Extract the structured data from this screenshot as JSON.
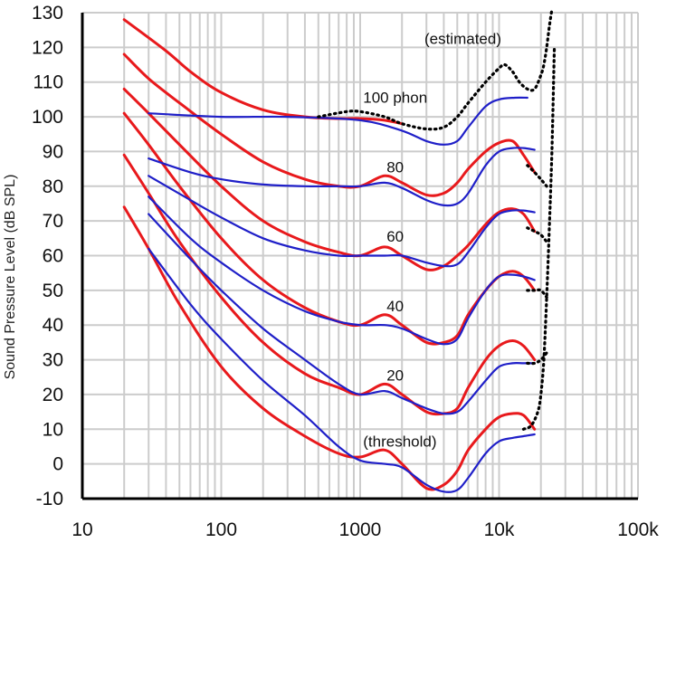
{
  "chart_data": {
    "type": "line",
    "title": "",
    "xlabel": "",
    "ylabel": "Sound Pressure Level (dB SPL)",
    "x_scale": "log",
    "xlim": [
      10,
      100000
    ],
    "ylim": [
      -10,
      130
    ],
    "x_ticks": [
      {
        "value": 10,
        "label": "10"
      },
      {
        "value": 100,
        "label": "100"
      },
      {
        "value": 1000,
        "label": "1000"
      },
      {
        "value": 10000,
        "label": "10k"
      },
      {
        "value": 100000,
        "label": "100k"
      }
    ],
    "y_ticks": [
      -10,
      0,
      10,
      20,
      30,
      40,
      50,
      60,
      70,
      80,
      90,
      100,
      110,
      120,
      130
    ],
    "grid": true,
    "colors": {
      "red": "#e8191c",
      "blue": "#1f1fc8",
      "estimated": "#000000",
      "grid": "#cccccc",
      "axis": "#000000"
    },
    "annotations": [
      {
        "text": "(estimated)",
        "x": 2900,
        "y": 121
      },
      {
        "text": "100 phon",
        "x": 1050,
        "y": 104
      },
      {
        "text": "80",
        "x": 1550,
        "y": 84
      },
      {
        "text": "60",
        "x": 1550,
        "y": 64
      },
      {
        "text": "40",
        "x": 1550,
        "y": 44
      },
      {
        "text": "20",
        "x": 1550,
        "y": 24
      },
      {
        "text": "(threshold)",
        "x": 1050,
        "y": 5
      }
    ],
    "series": [
      {
        "id": "red-100",
        "color": "red",
        "style": "solid",
        "x": [
          20,
          40,
          60,
          100,
          200,
          400,
          700,
          1000,
          1500,
          2000
        ],
        "y": [
          128,
          119,
          113,
          107,
          102,
          100,
          99.5,
          99.5,
          99,
          98
        ]
      },
      {
        "id": "red-threshold",
        "color": "red",
        "style": "solid",
        "x": [
          20,
          30,
          50,
          100,
          200,
          400,
          700,
          1000,
          1500,
          2000,
          3000,
          4000,
          5000,
          6000,
          8000,
          10000,
          12500,
          15000,
          18000
        ],
        "y": [
          74,
          62,
          46,
          28,
          16,
          8,
          3,
          2,
          4,
          0,
          -7,
          -6,
          -2,
          4,
          10,
          13.5,
          14.5,
          14,
          10
        ]
      },
      {
        "id": "red-20",
        "color": "red",
        "style": "solid",
        "x": [
          20,
          30,
          50,
          100,
          200,
          400,
          700,
          1000,
          1500,
          2000,
          3000,
          4000,
          5000,
          6000,
          8000,
          10000,
          12500,
          15000,
          18000
        ],
        "y": [
          89,
          78,
          64,
          48,
          35,
          26,
          22,
          20,
          23,
          20,
          15,
          14.5,
          16,
          22,
          30,
          34,
          35.5,
          34,
          30
        ]
      },
      {
        "id": "red-40",
        "color": "red",
        "style": "solid",
        "x": [
          20,
          30,
          50,
          100,
          200,
          400,
          700,
          1000,
          1500,
          2000,
          3000,
          4000,
          5000,
          6000,
          8000,
          10000,
          12500,
          15000,
          18000
        ],
        "y": [
          101,
          92,
          80,
          65,
          53,
          45,
          41,
          40,
          43,
          40,
          35,
          35,
          37,
          43,
          50,
          54,
          55.5,
          54,
          50
        ]
      },
      {
        "id": "red-60",
        "color": "red",
        "style": "solid",
        "x": [
          20,
          30,
          50,
          100,
          200,
          400,
          700,
          1000,
          1500,
          2000,
          3000,
          4000,
          5000,
          6000,
          8000,
          10000,
          12500,
          15000,
          18000
        ],
        "y": [
          108,
          101,
          92,
          80,
          70,
          64,
          61,
          60,
          62.5,
          60,
          56,
          57,
          60,
          63,
          69,
          72.5,
          73.5,
          72,
          67
        ]
      },
      {
        "id": "red-80",
        "color": "red",
        "style": "solid",
        "x": [
          20,
          30,
          50,
          100,
          200,
          400,
          700,
          1000,
          1500,
          2000,
          3000,
          4000,
          5000,
          6000,
          8000,
          10000,
          12500,
          15000,
          18000
        ],
        "y": [
          118,
          111,
          104,
          95,
          87,
          82,
          80,
          80,
          83,
          81,
          77.5,
          78,
          81,
          85,
          90,
          92.5,
          93,
          89,
          84
        ]
      },
      {
        "id": "blue-100",
        "color": "blue",
        "style": "solid",
        "x": [
          30,
          100,
          300,
          1000,
          2000,
          3000,
          4000,
          5000,
          6000,
          8000,
          10000,
          13000,
          16000
        ],
        "y": [
          101,
          100,
          100,
          99,
          96,
          93,
          92,
          93,
          97,
          103,
          105,
          105.5,
          105.5
        ]
      },
      {
        "id": "blue-80",
        "color": "blue",
        "style": "solid",
        "x": [
          30,
          60,
          100,
          200,
          400,
          700,
          1000,
          1500,
          2000,
          3000,
          4000,
          5000,
          6000,
          8000,
          10000,
          12500,
          15000,
          18000
        ],
        "y": [
          88,
          84,
          82,
          80.5,
          80,
          80,
          80,
          81,
          79.5,
          76,
          74.5,
          75,
          78,
          86,
          90,
          91,
          91,
          90.5
        ]
      },
      {
        "id": "blue-60",
        "color": "blue",
        "style": "solid",
        "x": [
          30,
          60,
          100,
          200,
          400,
          700,
          1000,
          1500,
          2000,
          3000,
          4000,
          5000,
          6000,
          8000,
          10000,
          12500,
          15000,
          18000
        ],
        "y": [
          83,
          76,
          71,
          65,
          61.5,
          60,
          60,
          60,
          60,
          58,
          57,
          57.5,
          61,
          68,
          72,
          73,
          73,
          72.5
        ]
      },
      {
        "id": "blue-40",
        "color": "blue",
        "style": "solid",
        "x": [
          30,
          60,
          100,
          200,
          400,
          700,
          1000,
          1500,
          2000,
          3000,
          4000,
          5000,
          6000,
          8000,
          10000,
          12500,
          15000,
          18000
        ],
        "y": [
          77,
          65,
          58,
          50,
          44,
          41,
          40,
          40,
          39,
          36,
          34.5,
          36,
          42,
          50,
          54,
          54.5,
          54,
          53
        ]
      },
      {
        "id": "blue-20",
        "color": "blue",
        "style": "solid",
        "x": [
          30,
          60,
          100,
          200,
          400,
          700,
          1000,
          1500,
          2000,
          3000,
          4000,
          5000,
          6000,
          8000,
          10000,
          12500,
          15000,
          18000
        ],
        "y": [
          72,
          59,
          50,
          39,
          30,
          23,
          20,
          21,
          19,
          16,
          14.5,
          15,
          18,
          24,
          28,
          29,
          29,
          29
        ]
      },
      {
        "id": "blue-threshold",
        "color": "blue",
        "style": "solid",
        "x": [
          30,
          60,
          100,
          200,
          400,
          700,
          1000,
          1500,
          2000,
          3000,
          4000,
          5000,
          6000,
          8000,
          10000,
          12500,
          15000,
          18000
        ],
        "y": [
          62,
          46,
          36,
          24,
          14,
          5,
          1,
          0,
          -1,
          -6,
          -8,
          -7.5,
          -4,
          3,
          6.5,
          7.5,
          8,
          8.5
        ]
      },
      {
        "id": "estimated",
        "color": "estimated",
        "style": "dotted",
        "x": [
          500,
          800,
          1000,
          1500,
          2000,
          3000,
          4000,
          5000,
          6000,
          8000,
          10000,
          11000,
          12500,
          14000,
          16000,
          18000,
          20000,
          21000,
          22000,
          23000,
          24000
        ],
        "y": [
          100,
          101.5,
          101.5,
          100,
          98,
          96.5,
          97,
          100,
          104,
          110,
          114,
          115,
          113,
          110,
          108,
          108,
          112,
          115,
          120,
          126,
          131
        ]
      },
      {
        "id": "estimated-tail",
        "color": "estimated",
        "style": "dotted",
        "x": [
          15000,
          17000,
          19000,
          20000,
          21000,
          22000,
          23000,
          24000,
          25000
        ],
        "y": [
          10,
          11,
          15,
          20,
          30,
          48,
          68,
          90,
          120
        ]
      }
    ],
    "series_extra_dots": [
      {
        "x": [
          16000,
          18000,
          20000,
          22000
        ],
        "y": [
          86,
          84,
          82,
          80
        ]
      },
      {
        "x": [
          16000,
          18000,
          20000,
          22000
        ],
        "y": [
          68,
          67,
          66,
          64
        ]
      },
      {
        "x": [
          16000,
          18000,
          20000,
          22000
        ],
        "y": [
          50,
          50,
          50,
          48
        ]
      },
      {
        "x": [
          16000,
          18000,
          20000,
          22000
        ],
        "y": [
          29,
          29,
          30,
          32
        ]
      }
    ]
  }
}
